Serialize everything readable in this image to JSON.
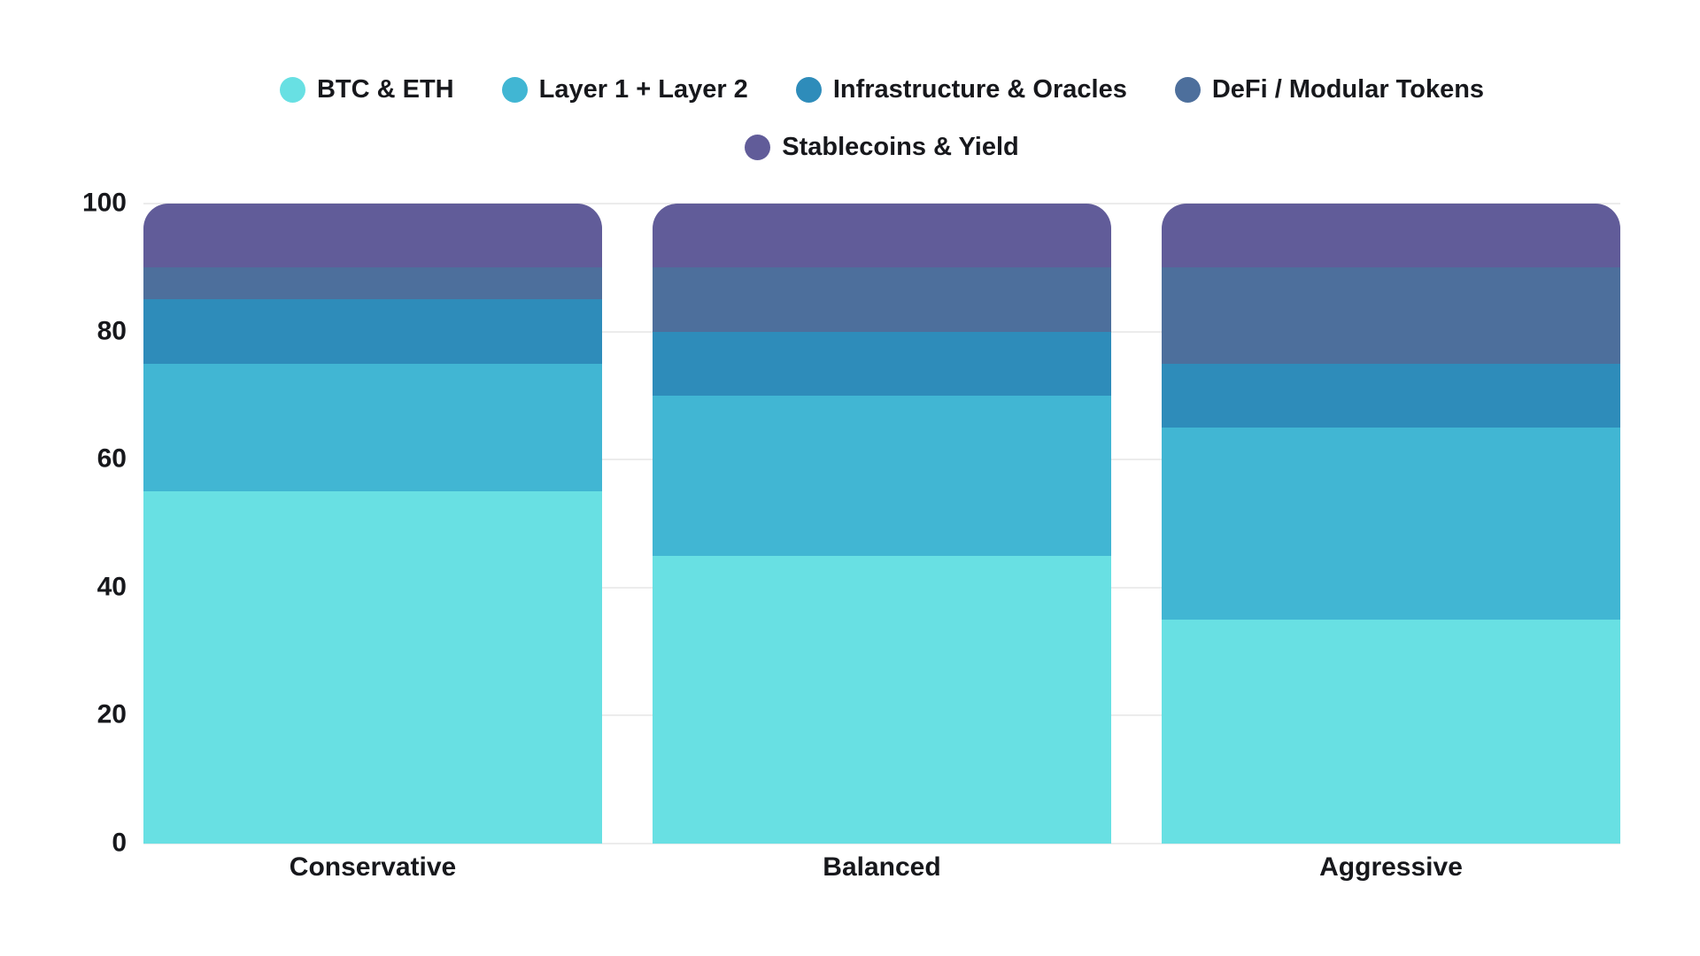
{
  "colors": {
    "background": "#ffffff",
    "grid": "#ececec",
    "text": "#17181c"
  },
  "chart_data": {
    "type": "bar",
    "stacked": true,
    "title": "",
    "xlabel": "",
    "ylabel": "",
    "categories": [
      "Conservative",
      "Balanced",
      "Aggressive"
    ],
    "series": [
      {
        "name": "BTC & ETH",
        "color": "#68E0E3",
        "values": [
          55,
          45,
          35
        ]
      },
      {
        "name": "Layer 1 + Layer 2",
        "color": "#41B6D3",
        "values": [
          20,
          25,
          30
        ]
      },
      {
        "name": "Infrastructure & Oracles",
        "color": "#2E8CBA",
        "values": [
          10,
          10,
          10
        ]
      },
      {
        "name": "DeFi / Modular Tokens",
        "color": "#4D6F9C",
        "values": [
          5,
          10,
          15
        ]
      },
      {
        "name": "Stablecoins & Yield",
        "color": "#615C99",
        "values": [
          10,
          10,
          10
        ]
      }
    ],
    "ylim": [
      0,
      100
    ],
    "yticks": [
      0,
      20,
      40,
      60,
      80,
      100
    ],
    "grid": true,
    "legend_position": "top",
    "legend_rows": [
      [
        "BTC & ETH",
        "Layer 1 + Layer 2",
        "Infrastructure & Oracles",
        "DeFi / Modular Tokens"
      ],
      [
        "Stablecoins & Yield"
      ]
    ]
  }
}
